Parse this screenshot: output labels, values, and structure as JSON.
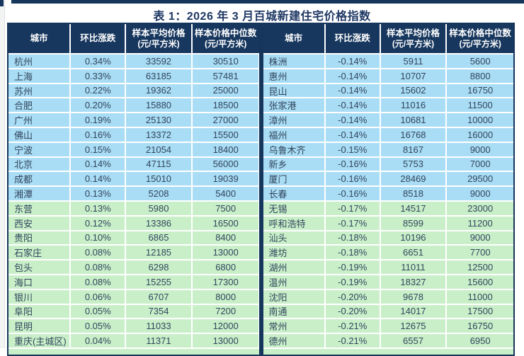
{
  "title": "表 1：2026 年 3 月百城新建住宅价格指数",
  "colors": {
    "navy": "#16365c",
    "header_bg": "#17375e",
    "row_blue": "#a9dcf5",
    "row_green": "#c9efc9",
    "cell_text": "#31465c",
    "title_text": "#1f3864"
  },
  "table": {
    "headers": [
      {
        "label": "城市",
        "sub": ""
      },
      {
        "label": "环比涨跌",
        "sub": ""
      },
      {
        "label": "样本平均价格",
        "sub": "(元/平方米)"
      },
      {
        "label": "样本价格中位数",
        "sub": "(元/平方米)"
      }
    ],
    "left_rows": [
      {
        "city": "杭州",
        "mom": "0.34%",
        "avg": "33592",
        "median": "30510",
        "band": "blue"
      },
      {
        "city": "上海",
        "mom": "0.33%",
        "avg": "63185",
        "median": "57481",
        "band": "blue"
      },
      {
        "city": "苏州",
        "mom": "0.22%",
        "avg": "19362",
        "median": "25000",
        "band": "blue"
      },
      {
        "city": "合肥",
        "mom": "0.20%",
        "avg": "15880",
        "median": "18500",
        "band": "blue"
      },
      {
        "city": "广州",
        "mom": "0.19%",
        "avg": "25130",
        "median": "27000",
        "band": "blue"
      },
      {
        "city": "佛山",
        "mom": "0.16%",
        "avg": "13372",
        "median": "15500",
        "band": "blue"
      },
      {
        "city": "宁波",
        "mom": "0.15%",
        "avg": "21054",
        "median": "18400",
        "band": "blue"
      },
      {
        "city": "北京",
        "mom": "0.14%",
        "avg": "47115",
        "median": "56000",
        "band": "blue"
      },
      {
        "city": "成都",
        "mom": "0.14%",
        "avg": "15010",
        "median": "19039",
        "band": "blue"
      },
      {
        "city": "湘潭",
        "mom": "0.13%",
        "avg": "5208",
        "median": "5400",
        "band": "blue"
      },
      {
        "city": "东营",
        "mom": "0.13%",
        "avg": "5980",
        "median": "7500",
        "band": "green"
      },
      {
        "city": "西安",
        "mom": "0.12%",
        "avg": "13386",
        "median": "16500",
        "band": "green"
      },
      {
        "city": "贵阳",
        "mom": "0.10%",
        "avg": "6865",
        "median": "8400",
        "band": "green"
      },
      {
        "city": "石家庄",
        "mom": "0.08%",
        "avg": "12185",
        "median": "13000",
        "band": "green"
      },
      {
        "city": "包头",
        "mom": "0.08%",
        "avg": "6298",
        "median": "6800",
        "band": "green"
      },
      {
        "city": "海口",
        "mom": "0.08%",
        "avg": "15255",
        "median": "17300",
        "band": "green"
      },
      {
        "city": "银川",
        "mom": "0.06%",
        "avg": "6707",
        "median": "8000",
        "band": "green"
      },
      {
        "city": "阜阳",
        "mom": "0.05%",
        "avg": "7354",
        "median": "7200",
        "band": "green"
      },
      {
        "city": "昆明",
        "mom": "0.05%",
        "avg": "11033",
        "median": "12000",
        "band": "green"
      },
      {
        "city": "重庆(主城区)",
        "mom": "0.04%",
        "avg": "11371",
        "median": "13000",
        "band": "green"
      }
    ],
    "right_rows": [
      {
        "city": "株洲",
        "mom": "-0.14%",
        "avg": "5911",
        "median": "5600",
        "band": "blue"
      },
      {
        "city": "惠州",
        "mom": "-0.14%",
        "avg": "10707",
        "median": "8800",
        "band": "blue"
      },
      {
        "city": "昆山",
        "mom": "-0.14%",
        "avg": "15602",
        "median": "16750",
        "band": "blue"
      },
      {
        "city": "张家港",
        "mom": "-0.14%",
        "avg": "11016",
        "median": "11500",
        "band": "blue"
      },
      {
        "city": "漳州",
        "mom": "-0.14%",
        "avg": "10681",
        "median": "10000",
        "band": "blue"
      },
      {
        "city": "福州",
        "mom": "-0.14%",
        "avg": "16768",
        "median": "16000",
        "band": "blue"
      },
      {
        "city": "乌鲁木齐",
        "mom": "-0.15%",
        "avg": "8167",
        "median": "9000",
        "band": "blue"
      },
      {
        "city": "新乡",
        "mom": "-0.16%",
        "avg": "5753",
        "median": "7000",
        "band": "blue"
      },
      {
        "city": "厦门",
        "mom": "-0.16%",
        "avg": "28469",
        "median": "29500",
        "band": "blue"
      },
      {
        "city": "长春",
        "mom": "-0.16%",
        "avg": "8518",
        "median": "9000",
        "band": "blue"
      },
      {
        "city": "无锡",
        "mom": "-0.17%",
        "avg": "14517",
        "median": "23000",
        "band": "green"
      },
      {
        "city": "呼和浩特",
        "mom": "-0.17%",
        "avg": "8599",
        "median": "11200",
        "band": "green"
      },
      {
        "city": "汕头",
        "mom": "-0.18%",
        "avg": "10196",
        "median": "9000",
        "band": "green"
      },
      {
        "city": "潍坊",
        "mom": "-0.18%",
        "avg": "6651",
        "median": "7700",
        "band": "green"
      },
      {
        "city": "湖州",
        "mom": "-0.19%",
        "avg": "11011",
        "median": "12500",
        "band": "green"
      },
      {
        "city": "温州",
        "mom": "-0.19%",
        "avg": "18327",
        "median": "15600",
        "band": "green"
      },
      {
        "city": "沈阳",
        "mom": "-0.20%",
        "avg": "9678",
        "median": "11000",
        "band": "green"
      },
      {
        "city": "南通",
        "mom": "-0.20%",
        "avg": "14017",
        "median": "17500",
        "band": "green"
      },
      {
        "city": "常州",
        "mom": "-0.21%",
        "avg": "12675",
        "median": "16750",
        "band": "green"
      },
      {
        "city": "德州",
        "mom": "-0.21%",
        "avg": "6557",
        "median": "6950",
        "band": "green"
      }
    ]
  }
}
